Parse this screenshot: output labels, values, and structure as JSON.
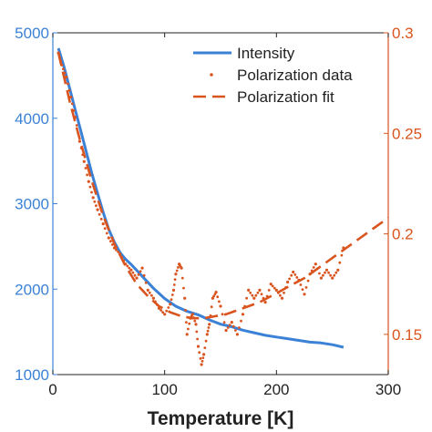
{
  "chart_data": {
    "type": "line",
    "title": "",
    "xlabel": "Temperature [K]",
    "xlim": [
      0,
      300
    ],
    "x_ticks": [
      "0",
      "100",
      "200",
      "300"
    ],
    "y_left": {
      "label": "",
      "lim": [
        1000,
        5000
      ],
      "ticks": [
        "1000",
        "2000",
        "3000",
        "4000",
        "5000"
      ],
      "color": "#3b82d6"
    },
    "y_right": {
      "label": "",
      "lim": [
        0.13,
        0.3
      ],
      "ticks": [
        "0.15",
        "0.2",
        "0.25",
        "0.3"
      ],
      "color": "#d9541e"
    },
    "grid": false,
    "legend_position": "top-right",
    "series": [
      {
        "name": "Intensity",
        "axis": "left",
        "style": "solid",
        "color": "#3b82d6",
        "x": [
          5,
          10,
          15,
          20,
          25,
          30,
          35,
          40,
          45,
          50,
          55,
          60,
          65,
          70,
          75,
          80,
          85,
          90,
          95,
          100,
          110,
          120,
          130,
          140,
          150,
          160,
          170,
          180,
          190,
          200,
          210,
          220,
          230,
          240,
          250,
          260
        ],
        "y": [
          4820,
          4600,
          4350,
          4100,
          3850,
          3600,
          3350,
          3120,
          2900,
          2700,
          2550,
          2430,
          2350,
          2290,
          2220,
          2150,
          2080,
          2010,
          1950,
          1890,
          1800,
          1740,
          1700,
          1640,
          1590,
          1560,
          1520,
          1490,
          1460,
          1440,
          1420,
          1400,
          1380,
          1370,
          1350,
          1320
        ]
      },
      {
        "name": "Polarization data",
        "axis": "right",
        "style": "dots",
        "color": "#d9541e",
        "x": [
          5,
          8,
          12,
          16,
          20,
          24,
          28,
          32,
          36,
          40,
          45,
          50,
          55,
          60,
          65,
          70,
          75,
          80,
          85,
          90,
          95,
          100,
          105,
          108,
          110,
          113,
          115,
          118,
          120,
          123,
          125,
          128,
          130,
          133,
          135,
          138,
          140,
          143,
          146,
          150,
          155,
          160,
          165,
          170,
          175,
          180,
          185,
          190,
          195,
          200,
          205,
          210,
          215,
          220,
          225,
          230,
          235,
          240,
          245,
          250,
          255,
          260
        ],
        "y": [
          0.29,
          0.284,
          0.278,
          0.268,
          0.258,
          0.246,
          0.236,
          0.226,
          0.218,
          0.212,
          0.205,
          0.198,
          0.193,
          0.19,
          0.185,
          0.182,
          0.178,
          0.183,
          0.172,
          0.168,
          0.163,
          0.16,
          0.165,
          0.172,
          0.18,
          0.185,
          0.183,
          0.168,
          0.15,
          0.158,
          0.16,
          0.155,
          0.144,
          0.135,
          0.14,
          0.15,
          0.155,
          0.168,
          0.171,
          0.164,
          0.152,
          0.156,
          0.15,
          0.16,
          0.172,
          0.168,
          0.172,
          0.166,
          0.175,
          0.172,
          0.168,
          0.176,
          0.181,
          0.177,
          0.17,
          0.18,
          0.185,
          0.178,
          0.182,
          0.178,
          0.182,
          0.193
        ]
      },
      {
        "name": "Polarization fit",
        "axis": "right",
        "style": "dashed",
        "color": "#d9541e",
        "x": [
          5,
          15,
          25,
          35,
          45,
          55,
          65,
          75,
          85,
          95,
          105,
          115,
          125,
          135,
          145,
          155,
          165,
          175,
          185,
          195,
          205,
          215,
          225,
          235,
          245,
          255,
          265,
          275,
          285,
          295,
          300
        ],
        "y": [
          0.29,
          0.266,
          0.245,
          0.226,
          0.209,
          0.195,
          0.184,
          0.175,
          0.169,
          0.164,
          0.161,
          0.159,
          0.158,
          0.158,
          0.159,
          0.16,
          0.162,
          0.164,
          0.166,
          0.169,
          0.172,
          0.175,
          0.178,
          0.182,
          0.186,
          0.19,
          0.194,
          0.198,
          0.202,
          0.206,
          0.208
        ]
      }
    ]
  }
}
